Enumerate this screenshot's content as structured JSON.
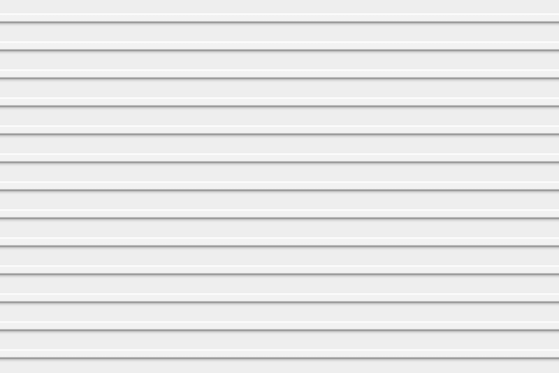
{
  "scene": {
    "colors": {
      "panel": "#eeeeee",
      "highlight": "#ffffff",
      "edge_shadow": "#8f8f8f"
    }
  }
}
